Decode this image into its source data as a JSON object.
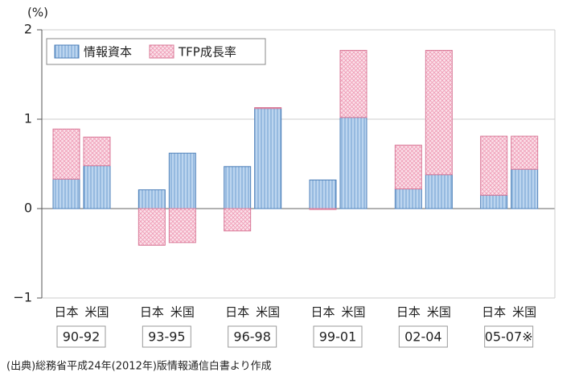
{
  "chart_data": {
    "type": "stacked-bar",
    "y_label": "(%)",
    "categories": [
      "90-92",
      "93-95",
      "96-98",
      "99-01",
      "02-04",
      "05-07※"
    ],
    "subcategories": [
      "日本",
      "米国"
    ],
    "series": [
      {
        "name": "情報資本",
        "color": "#a8c6e6",
        "values": [
          [
            0.33,
            0.48
          ],
          [
            0.21,
            0.62
          ],
          [
            0.47,
            1.12
          ],
          [
            0.32,
            1.02
          ],
          [
            0.22,
            0.38
          ],
          [
            0.15,
            0.44
          ]
        ]
      },
      {
        "name": "TFP成長率",
        "color": "#f7c8d6",
        "values": [
          [
            0.56,
            0.32
          ],
          [
            -0.41,
            -0.38
          ],
          [
            -0.25,
            0.01
          ],
          [
            -0.01,
            0.75
          ],
          [
            0.49,
            1.39
          ],
          [
            0.66,
            0.37
          ]
        ]
      }
    ],
    "ylim": [
      -1,
      2
    ],
    "yticks": [
      {
        "value": -1,
        "label": "−1"
      },
      0,
      1,
      2
    ],
    "grid": true,
    "legend": "top-left",
    "source": "(出典)総務省平成24年(2012年)版情報通信白書より作成"
  }
}
